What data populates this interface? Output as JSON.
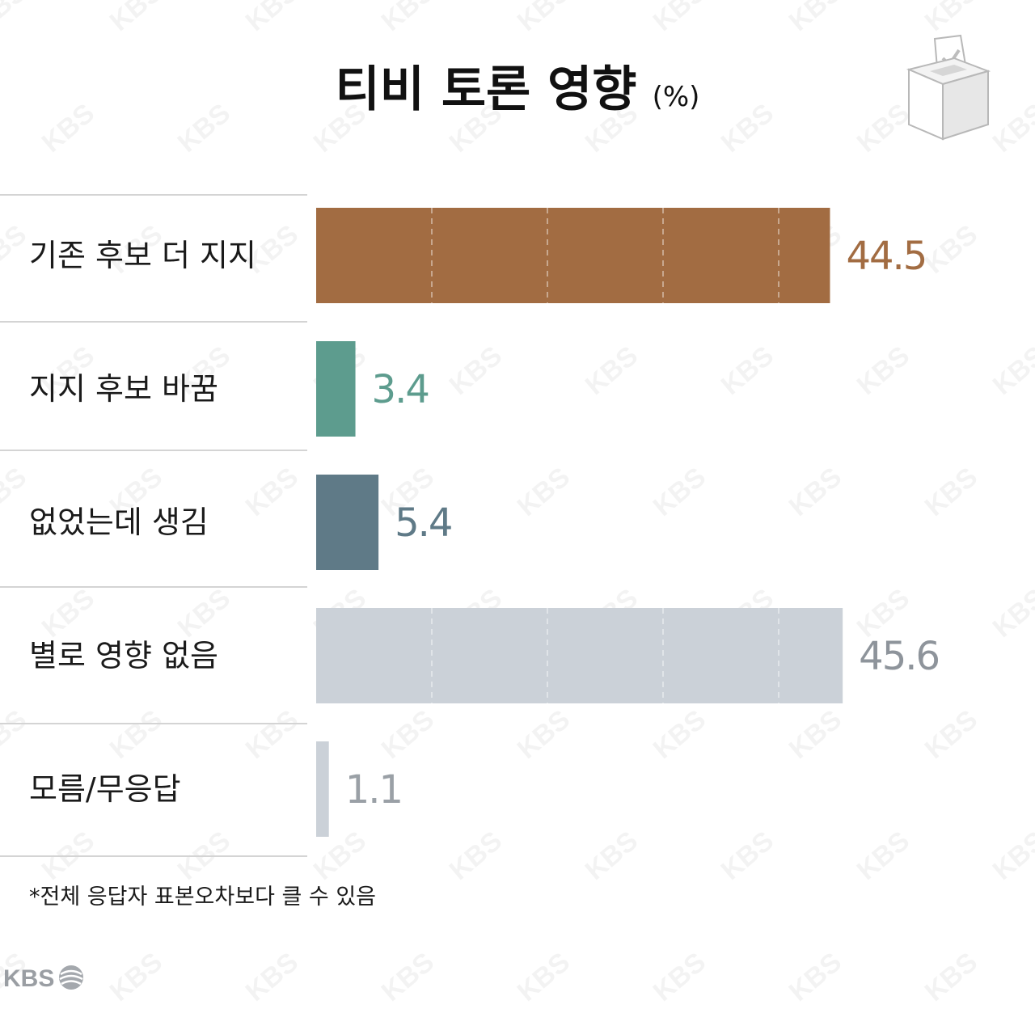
{
  "chart_data": {
    "type": "bar",
    "orientation": "horizontal",
    "title": "티비 토론 영향",
    "unit": "(%)",
    "categories": [
      "기존 후보 더 지지",
      "지지 후보 바꿈",
      "없었는데 생김",
      "별로 영향 없음",
      "모름/무응답"
    ],
    "values": [
      44.5,
      3.4,
      5.4,
      45.6,
      1.1
    ],
    "value_labels": [
      "44.5",
      "3.4",
      "5.4",
      "45.6",
      "1.1"
    ],
    "bar_colors": [
      "#a26c42",
      "#5d9c8e",
      "#5f7a87",
      "#cbd1d8",
      "#cbd1d8"
    ],
    "label_colors": [
      "#a26c42",
      "#5d9c8e",
      "#5f7a87",
      "#8e949b",
      "#9aa0a6"
    ],
    "xlim": [
      0,
      50
    ],
    "grid": "dashed vertical lines inside bars",
    "footnote": "*전체 응답자 표본오차보다 클 수 있음"
  },
  "brand": {
    "logo_text": "KBS",
    "watermark_text": "KBS"
  },
  "icons": {
    "ballot_box": "ballot-box-icon",
    "kbs_logo": "kbs-logo-icon"
  }
}
